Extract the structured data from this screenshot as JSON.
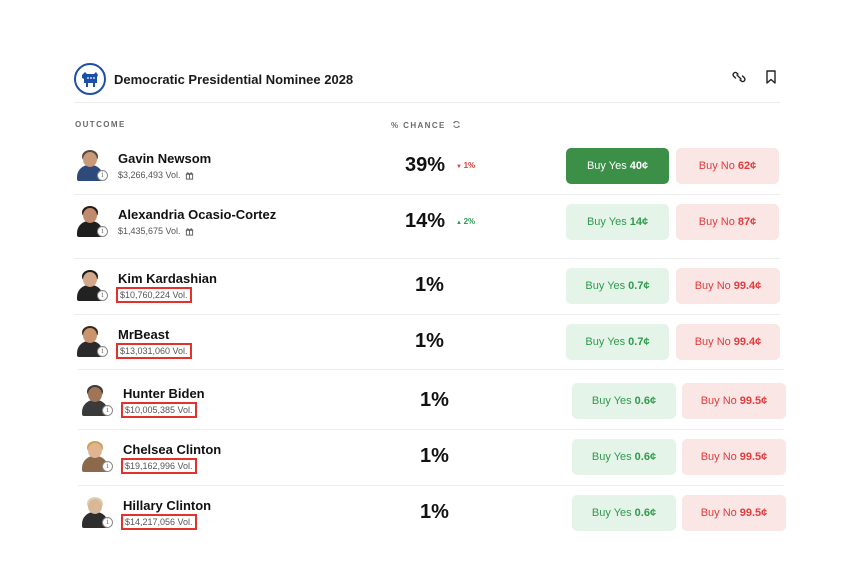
{
  "market": {
    "title": "Democratic Presidential Nominee 2028",
    "icons": [
      "donkey-logo-icon",
      "link-icon",
      "bookmark-icon"
    ]
  },
  "columns": {
    "outcome": "OUTCOME",
    "chance": "% CHANCE"
  },
  "colors": {
    "yes_active": "#3b8f47",
    "yes_bg": "#e5f4e9",
    "no_bg": "#fbe6e6",
    "no_text": "#e23b3b",
    "highlight_box": "#e5312b",
    "brand": "#1e4fa8"
  },
  "rows": [
    {
      "name": "Gavin Newsom",
      "volume": "$3,266,493 Vol.",
      "chance": "39%",
      "delta": "1%",
      "delta_dir": "down",
      "yes": "Buy Yes",
      "yes_price": "40¢",
      "no": "Buy No",
      "no_price": "62¢",
      "highlighted": false,
      "gift": true
    },
    {
      "name": "Alexandria Ocasio-Cortez",
      "volume": "$1,435,675 Vol.",
      "chance": "14%",
      "delta": "2%",
      "delta_dir": "up",
      "yes": "Buy Yes",
      "yes_price": "14¢",
      "no": "Buy No",
      "no_price": "87¢",
      "highlighted": false,
      "gift": true
    },
    {
      "name": "Kim Kardashian",
      "volume": "$10,760,224 Vol.",
      "chance": "1%",
      "delta": "",
      "delta_dir": "",
      "yes": "Buy Yes",
      "yes_price": "0.7¢",
      "no": "Buy No",
      "no_price": "99.4¢",
      "highlighted": true,
      "gift": false
    },
    {
      "name": "MrBeast",
      "volume": "$13,031,060 Vol.",
      "chance": "1%",
      "delta": "",
      "delta_dir": "",
      "yes": "Buy Yes",
      "yes_price": "0.7¢",
      "no": "Buy No",
      "no_price": "99.4¢",
      "highlighted": true,
      "gift": false
    },
    {
      "name": "Hunter Biden",
      "volume": "$10,005,385 Vol.",
      "chance": "1%",
      "delta": "",
      "delta_dir": "",
      "yes": "Buy Yes",
      "yes_price": "0.6¢",
      "no": "Buy No",
      "no_price": "99.5¢",
      "highlighted": true,
      "gift": false
    },
    {
      "name": "Chelsea Clinton",
      "volume": "$19,162,996 Vol.",
      "chance": "1%",
      "delta": "",
      "delta_dir": "",
      "yes": "Buy Yes",
      "yes_price": "0.6¢",
      "no": "Buy No",
      "no_price": "99.5¢",
      "highlighted": true,
      "gift": false
    },
    {
      "name": "Hillary Clinton",
      "volume": "$14,217,056 Vol.",
      "chance": "1%",
      "delta": "",
      "delta_dir": "",
      "yes": "Buy Yes",
      "yes_price": "0.6¢",
      "no": "Buy No",
      "no_price": "99.5¢",
      "highlighted": true,
      "gift": false
    }
  ]
}
